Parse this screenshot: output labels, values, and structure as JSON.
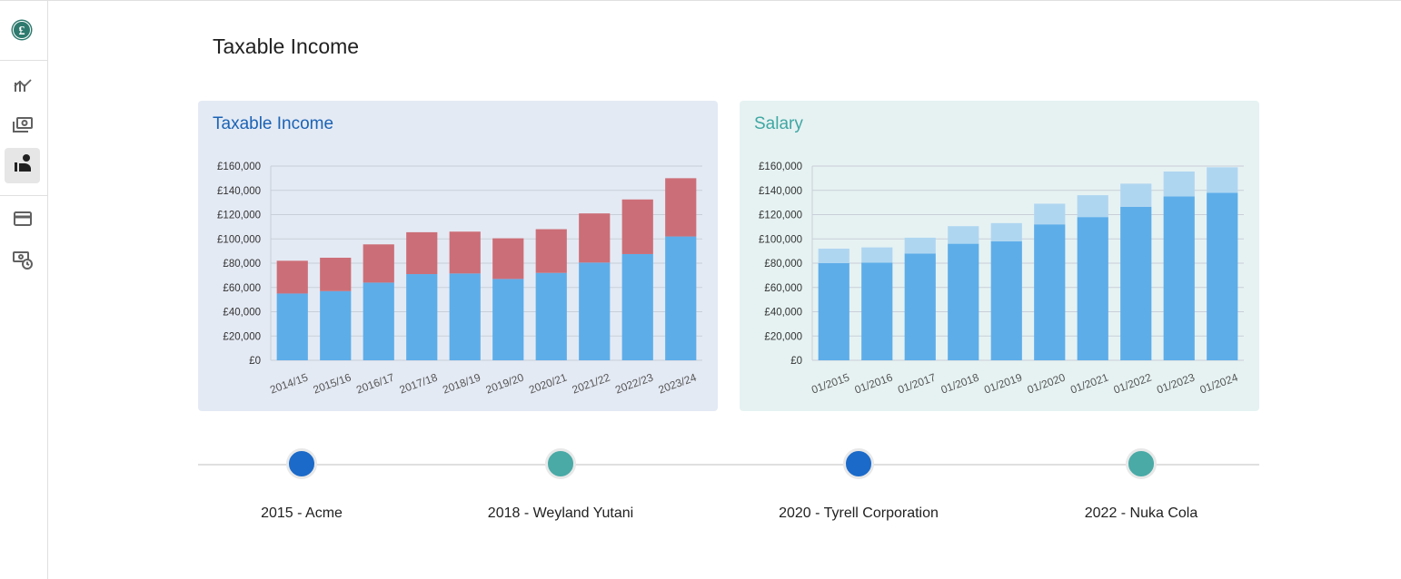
{
  "app": {
    "logo_symbol": "£"
  },
  "sidebar": {
    "items": [
      {
        "icon": "trending-chart-icon",
        "active": false
      },
      {
        "icon": "payments-icon",
        "active": false
      },
      {
        "icon": "person-income-icon",
        "active": true
      },
      {
        "icon": "credit-card-icon",
        "active": false
      },
      {
        "icon": "payment-schedule-icon",
        "active": false
      }
    ]
  },
  "page": {
    "title": "Taxable Income"
  },
  "cards": {
    "income_title": "Taxable Income",
    "salary_title": "Salary"
  },
  "colors": {
    "blue_bar": "#5dade9",
    "red_bar": "#cc6e77",
    "light_blue_bar": "#afd6f1",
    "income_title": "#1b63b5",
    "salary_title": "#3fa7a3",
    "dot_blue": "#1b6ac9",
    "dot_teal": "#49aaa6"
  },
  "chart_data": [
    {
      "type": "bar",
      "stacked": true,
      "title": "Taxable Income",
      "categories": [
        "2014/15",
        "2015/16",
        "2016/17",
        "2017/18",
        "2018/19",
        "2019/20",
        "2020/21",
        "2021/22",
        "2022/23",
        "2023/24"
      ],
      "series": [
        {
          "values": [
            55000,
            57000,
            64000,
            71000,
            71500,
            67000,
            72000,
            80500,
            87500,
            102000
          ],
          "color": "#5dade9"
        },
        {
          "values": [
            27000,
            27500,
            31500,
            34500,
            34500,
            33500,
            36000,
            40500,
            45000,
            48000
          ],
          "color": "#cc6e77"
        }
      ],
      "ylim": [
        0,
        160000
      ],
      "yticks": [
        "£0",
        "£20,000",
        "£40,000",
        "£60,000",
        "£80,000",
        "£100,000",
        "£120,000",
        "£140,000",
        "£160,000"
      ],
      "grid": true
    },
    {
      "type": "bar",
      "stacked": true,
      "title": "Salary",
      "categories": [
        "01/2015",
        "01/2016",
        "01/2017",
        "01/2018",
        "01/2019",
        "01/2020",
        "01/2021",
        "01/2022",
        "01/2023",
        "01/2024"
      ],
      "series": [
        {
          "values": [
            80000,
            80500,
            88000,
            96000,
            98000,
            112000,
            118000,
            126500,
            135000,
            138000
          ],
          "color": "#5dade9"
        },
        {
          "values": [
            12000,
            12500,
            13000,
            14500,
            15000,
            17000,
            18000,
            19000,
            20500,
            21000
          ],
          "color": "#afd6f1"
        }
      ],
      "ylim": [
        0,
        160000
      ],
      "yticks": [
        "£0",
        "£20,000",
        "£40,000",
        "£60,000",
        "£80,000",
        "£100,000",
        "£120,000",
        "£140,000",
        "£160,000"
      ],
      "grid": true
    }
  ],
  "timeline": [
    {
      "label": "2015 - Acme",
      "color": "#1b6ac9"
    },
    {
      "label": "2018 - Weyland Yutani",
      "color": "#49aaa6"
    },
    {
      "label": "2020 - Tyrell Corporation",
      "color": "#1b6ac9"
    },
    {
      "label": "2022 - Nuka Cola",
      "color": "#49aaa6"
    }
  ]
}
